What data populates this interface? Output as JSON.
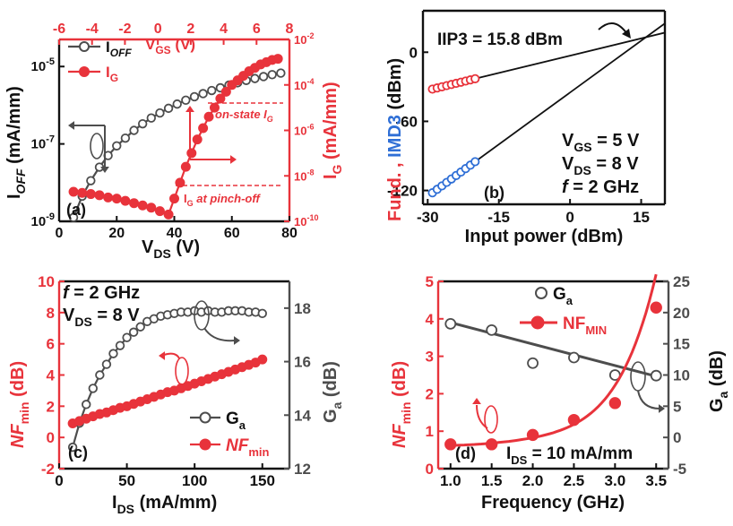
{
  "colors": {
    "red": "#e8333b",
    "gray": "#4d4d4d",
    "black": "#111111",
    "blue": "#2f6fd6"
  },
  "chart_data": [
    {
      "id": "a",
      "type": "line",
      "panel_label": "(a)",
      "xlabel_main": "V",
      "xlabel_sub": "DS",
      "xlabel_tail": " (V)",
      "xlim": [
        0,
        80
      ],
      "xticks": [
        0,
        20,
        40,
        60,
        80
      ],
      "xtick_labels": [
        "0",
        "20",
        "40",
        "60",
        "80"
      ],
      "top_xlabel_main": "V",
      "top_xlabel_sub": "GS",
      "top_xlabel_tail": " (V)",
      "top_xlim": [
        -6,
        8
      ],
      "top_xticks": [
        -6,
        -4,
        -2,
        0,
        2,
        4,
        6,
        8
      ],
      "top_xtick_labels": [
        "-6",
        "-4",
        "-2",
        "0",
        "2",
        "4",
        "6",
        "8"
      ],
      "ylabel_left_main": "I",
      "ylabel_left_sub": "OFF",
      "ylabel_left_tail": " (mA/mm)",
      "ylim_left_exp": [
        -9,
        -4.3
      ],
      "yticks_left_exp": [
        -9,
        -7,
        -5
      ],
      "ytick_left_base": [
        "10",
        "10",
        "10"
      ],
      "ytick_left_exp": [
        "-9",
        "-7",
        "-5"
      ],
      "ylabel_right_main": "I",
      "ylabel_right_sub": "G",
      "ylabel_right_tail": " (mA/mm)",
      "ylim_right_exp": [
        -10,
        -2
      ],
      "yticks_right_exp": [
        -10,
        -8,
        -6,
        -4,
        -2
      ],
      "ytick_right_base": [
        "10",
        "10",
        "10",
        "10",
        "10"
      ],
      "ytick_right_exp": [
        "-10",
        "-8",
        "-6",
        "-4",
        "-2"
      ],
      "series": [
        {
          "name": "I_OFF",
          "legend_main": "I",
          "legend_sub": "OFF",
          "axis": "left",
          "color": "#4d4d4d",
          "marker": "open-circle",
          "x": [
            5,
            8,
            11,
            14,
            17,
            20,
            23,
            26,
            29,
            32,
            35,
            38,
            41,
            44,
            47,
            50,
            53,
            56,
            59,
            62,
            65,
            68,
            71,
            74,
            77
          ],
          "log10_y": [
            -8.9,
            -8.35,
            -7.95,
            -7.6,
            -7.3,
            -7.05,
            -6.85,
            -6.65,
            -6.48,
            -6.33,
            -6.2,
            -6.08,
            -5.97,
            -5.87,
            -5.78,
            -5.7,
            -5.62,
            -5.55,
            -5.48,
            -5.42,
            -5.36,
            -5.31,
            -5.26,
            -5.21,
            -5.17
          ]
        },
        {
          "name": "I_G",
          "legend_main": "I",
          "legend_sub": "G",
          "axis": "right",
          "color": "#e8333b",
          "marker": "filled-circle",
          "x": [
            5,
            8,
            11,
            14,
            17,
            20,
            23,
            26,
            29,
            32,
            35,
            38,
            40,
            42,
            44,
            46,
            48,
            50,
            52,
            54,
            56,
            58,
            60,
            62,
            64,
            66,
            68,
            70,
            72,
            74,
            76
          ],
          "log10_y": [
            -8.7,
            -8.75,
            -8.8,
            -8.85,
            -8.95,
            -9.0,
            -9.1,
            -9.2,
            -9.3,
            -9.4,
            -9.55,
            -9.7,
            -9.0,
            -8.3,
            -7.6,
            -7.0,
            -6.4,
            -5.9,
            -5.4,
            -5.0,
            -4.6,
            -4.3,
            -4.0,
            -3.8,
            -3.6,
            -3.4,
            -3.25,
            -3.1,
            -3.0,
            -2.9,
            -2.85
          ]
        }
      ],
      "annotations": {
        "on_state": "on-state I",
        "on_state_sub": "G",
        "pinch_main": "I",
        "pinch_sub": "G",
        "pinch_tail": " at pinch-off"
      }
    },
    {
      "id": "b",
      "type": "line",
      "panel_label": "(b)",
      "title": "IIP3 = 15.8 dBm",
      "xlabel": "Input power (dBm)",
      "xlim": [
        -31,
        20
      ],
      "xticks": [
        -30,
        -15,
        0,
        15
      ],
      "xtick_labels": [
        "-30",
        "-15",
        "0",
        "15"
      ],
      "ylabel_red": "Fund. ,",
      "ylabel_blue": "IMD3",
      "ylabel_black": " (dBm)",
      "ylim": [
        -132,
        36
      ],
      "yticks": [
        -120,
        -60,
        0
      ],
      "ytick_labels": [
        "-120",
        "-60",
        "0"
      ],
      "conditions": [
        {
          "main": "V",
          "sub": "GS",
          "tail": " = 5 V"
        },
        {
          "main": "V",
          "sub": "DS",
          "tail": " = 8 V"
        },
        {
          "main": "f",
          "sub": "",
          "tail": " = 2 GHz"
        }
      ],
      "series": [
        {
          "name": "Fund.",
          "color": "#e8333b",
          "marker": "open-circle",
          "x": [
            -29,
            -28,
            -27,
            -26,
            -25,
            -24,
            -23,
            -22,
            -21,
            -20
          ],
          "y": [
            -32,
            -31,
            -30,
            -29,
            -28,
            -27,
            -26,
            -25,
            -24,
            -23
          ]
        },
        {
          "name": "IMD3",
          "color": "#2f6fd6",
          "marker": "open-circle",
          "x": [
            -29,
            -28,
            -27,
            -26,
            -25,
            -24,
            -23,
            -22,
            -21,
            -20
          ],
          "y": [
            -122,
            -119,
            -116,
            -113,
            -110,
            -107,
            -104,
            -101,
            -98,
            -95
          ]
        }
      ],
      "fit_lines": [
        {
          "x": [
            -29,
            20
          ],
          "y": [
            -32,
            17
          ]
        },
        {
          "x": [
            -29,
            20
          ],
          "y": [
            -122,
            25
          ]
        }
      ]
    },
    {
      "id": "c",
      "type": "line",
      "panel_label": "(c)",
      "xlabel_main": "I",
      "xlabel_sub": "DS",
      "xlabel_tail": " (mA/mm)",
      "xlim": [
        0,
        170
      ],
      "xticks": [
        0,
        50,
        100,
        150
      ],
      "xtick_labels": [
        "0",
        "50",
        "100",
        "150"
      ],
      "ylabel_left_main": "NF",
      "ylabel_left_sub": "min",
      "ylabel_left_tail": " (dB)",
      "ylim_left": [
        -2,
        10
      ],
      "yticks_left": [
        -2,
        0,
        2,
        4,
        6,
        8,
        10
      ],
      "ytick_left_labels": [
        "-2",
        "0",
        "2",
        "4",
        "6",
        "8",
        "10"
      ],
      "ylabel_right_main": "G",
      "ylabel_right_sub": "a",
      "ylabel_right_tail": " (dB)",
      "ylim_right": [
        12,
        19
      ],
      "yticks_right": [
        12,
        14,
        16,
        18
      ],
      "ytick_right_labels": [
        "12",
        "14",
        "16",
        "18"
      ],
      "conditions": [
        {
          "main": "f",
          "sub": "",
          "tail": " = 2 GHz"
        },
        {
          "main": "V",
          "sub": "DS",
          "tail": " = 8 V"
        }
      ],
      "series": [
        {
          "name": "G_a",
          "legend_main": "G",
          "legend_sub": "a",
          "axis": "right",
          "color": "#4d4d4d",
          "marker": "open-circle",
          "x": [
            10,
            15,
            20,
            25,
            30,
            35,
            40,
            45,
            50,
            55,
            60,
            65,
            70,
            75,
            80,
            85,
            90,
            95,
            100,
            105,
            110,
            115,
            120,
            125,
            130,
            135,
            140,
            145,
            150
          ],
          "y": [
            12.8,
            13.7,
            14.4,
            15.0,
            15.5,
            15.9,
            16.3,
            16.6,
            16.9,
            17.1,
            17.3,
            17.5,
            17.6,
            17.7,
            17.75,
            17.8,
            17.85,
            17.85,
            17.9,
            17.85,
            17.9,
            17.85,
            17.85,
            17.9,
            17.9,
            17.9,
            17.85,
            17.85,
            17.8
          ]
        },
        {
          "name": "NF_min",
          "legend_main": "NF",
          "legend_sub": "min",
          "axis": "left",
          "color": "#e8333b",
          "marker": "filled-circle",
          "x": [
            10,
            15,
            20,
            25,
            30,
            35,
            40,
            45,
            50,
            55,
            60,
            65,
            70,
            75,
            80,
            85,
            90,
            95,
            100,
            105,
            110,
            115,
            120,
            125,
            130,
            135,
            140,
            145,
            150
          ],
          "y": [
            0.9,
            1.05,
            1.2,
            1.35,
            1.5,
            1.6,
            1.75,
            1.9,
            2.0,
            2.15,
            2.3,
            2.45,
            2.6,
            2.75,
            2.9,
            3.0,
            3.15,
            3.3,
            3.45,
            3.6,
            3.75,
            3.9,
            4.05,
            4.2,
            4.35,
            4.5,
            4.65,
            4.8,
            5.0
          ]
        }
      ]
    },
    {
      "id": "d",
      "type": "line",
      "panel_label": "(d)",
      "xlabel": "Frequency (GHz)",
      "xlim": [
        0.85,
        3.65
      ],
      "xticks": [
        1.0,
        1.5,
        2.0,
        2.5,
        3.0,
        3.5
      ],
      "xtick_labels": [
        "1.0",
        "1.5",
        "2.0",
        "2.5",
        "3.0",
        "3.5"
      ],
      "ylabel_left_main": "NF",
      "ylabel_left_sub": "min",
      "ylabel_left_tail": " (dB)",
      "ylim_left": [
        0,
        5
      ],
      "yticks_left": [
        0,
        1,
        2,
        3,
        4,
        5
      ],
      "ytick_left_labels": [
        "0",
        "1",
        "2",
        "3",
        "4",
        "5"
      ],
      "ylabel_right_main": "G",
      "ylabel_right_sub": "a",
      "ylabel_right_tail": " (dB)",
      "ylim_right": [
        -5,
        25
      ],
      "yticks_right": [
        -5,
        0,
        5,
        10,
        15,
        20,
        25
      ],
      "ytick_right_labels": [
        "-5",
        "0",
        "5",
        "10",
        "15",
        "20",
        "25"
      ],
      "conditions": [
        {
          "main": "I",
          "sub": "DS",
          "tail": " = 10 mA/mm"
        }
      ],
      "series": [
        {
          "name": "G_a",
          "legend_main": "G",
          "legend_sub": "a",
          "axis": "right",
          "color": "#4d4d4d",
          "marker": "open-circle",
          "x": [
            1.0,
            1.5,
            2.0,
            2.5,
            3.0,
            3.5
          ],
          "y": [
            18.2,
            17.2,
            11.9,
            12.8,
            10.0,
            9.9
          ]
        },
        {
          "name": "NF_MIN",
          "legend_main": "NF",
          "legend_sub": "MIN",
          "axis": "left",
          "color": "#e8333b",
          "marker": "filled-circle",
          "x": [
            1.0,
            1.5,
            2.0,
            2.5,
            3.0,
            3.5
          ],
          "y": [
            0.65,
            0.65,
            0.9,
            1.3,
            1.75,
            4.3
          ]
        }
      ],
      "fit_lines": [
        {
          "axis": "right",
          "x": [
            1.0,
            3.5
          ],
          "y": [
            18.4,
            9.8
          ]
        }
      ]
    }
  ]
}
